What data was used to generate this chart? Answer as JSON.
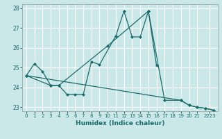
{
  "xlabel": "Humidex (Indice chaleur)",
  "bg_color": "#cbe8e8",
  "grid_color": "#ffffff",
  "line_color": "#1a6b6b",
  "xlim": [
    -0.5,
    23.5
  ],
  "ylim": [
    22.8,
    28.2
  ],
  "yticks": [
    23,
    24,
    25,
    26,
    27,
    28
  ],
  "xtick_labels": [
    "0",
    "1",
    "2",
    "3",
    "4",
    "5",
    "6",
    "7",
    "8",
    "9",
    "10",
    "11",
    "12",
    "13",
    "14",
    "15",
    "16",
    "17",
    "18",
    "19",
    "20",
    "21",
    "2223"
  ],
  "xtick_pos": [
    0,
    1,
    2,
    3,
    4,
    5,
    6,
    7,
    8,
    9,
    10,
    11,
    12,
    13,
    14,
    15,
    16,
    17,
    18,
    19,
    20,
    21,
    22.5
  ],
  "s1_x": [
    0,
    1,
    2,
    3,
    4,
    5,
    6,
    7,
    8,
    9,
    11,
    12,
    13,
    14,
    15,
    16
  ],
  "s1_y": [
    24.6,
    25.2,
    24.8,
    24.1,
    24.1,
    23.65,
    23.65,
    23.65,
    25.3,
    25.15,
    26.6,
    27.85,
    26.55,
    26.55,
    27.85,
    25.1
  ],
  "s2_x": [
    0,
    3,
    4,
    10,
    15,
    17,
    19,
    20,
    21,
    22,
    23
  ],
  "s2_y": [
    24.6,
    24.1,
    24.1,
    26.1,
    27.85,
    23.35,
    23.35,
    23.1,
    23.0,
    22.95,
    22.85
  ],
  "s3_x": [
    0,
    19,
    20,
    21,
    22,
    23
  ],
  "s3_y": [
    24.6,
    23.35,
    23.1,
    23.0,
    22.95,
    22.85
  ]
}
